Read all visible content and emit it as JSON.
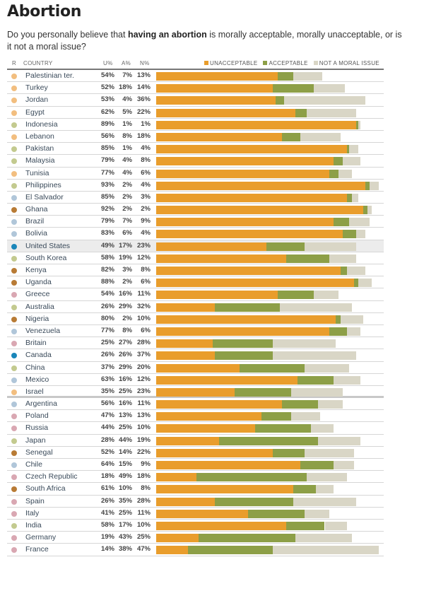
{
  "header": {
    "title": "Abortion",
    "question_pre": "Do you personally believe that ",
    "question_bold": "having an abortion",
    "question_post": " is morally acceptable, morally unacceptable, or is it not a moral issue?"
  },
  "columns": {
    "region": "R",
    "country": "COUNTRY",
    "u": "U%",
    "a": "A%",
    "n": "N%"
  },
  "legend": [
    {
      "label": "UNACCEPTABLE",
      "color": "#e99d2c"
    },
    {
      "label": "ACCEPTABLE",
      "color": "#8d9f47"
    },
    {
      "label": "NOT A MORAL ISSUE",
      "color": "#d9d6c6"
    }
  ],
  "region_colors": {
    "middle_east": "#f2be7f",
    "asia": "#c3ca8f",
    "latin_america": "#b0c6d9",
    "africa": "#b87b35",
    "north_america": "#1a86b9",
    "europe": "#d9a7b2"
  },
  "chart_data": {
    "type": "bar",
    "stacked": true,
    "orientation": "horizontal",
    "title": "Abortion",
    "subtitle": "Do you personally believe that having an abortion is morally acceptable, morally unacceptable, or is it not a moral issue?",
    "xlim": [
      0,
      100
    ],
    "legend_position": "top-right",
    "series_names": [
      "Unacceptable",
      "Acceptable",
      "Not a moral issue"
    ],
    "highlight": "United States",
    "section_break_after": "Israel",
    "rows": [
      {
        "country": "Palestinian ter.",
        "region": "middle_east",
        "u": 54,
        "a": 7,
        "n": 13
      },
      {
        "country": "Turkey",
        "region": "middle_east",
        "u": 52,
        "a": 18,
        "n": 14
      },
      {
        "country": "Jordan",
        "region": "middle_east",
        "u": 53,
        "a": 4,
        "n": 36
      },
      {
        "country": "Egypt",
        "region": "middle_east",
        "u": 62,
        "a": 5,
        "n": 22
      },
      {
        "country": "Indonesia",
        "region": "asia",
        "u": 89,
        "a": 1,
        "n": 1
      },
      {
        "country": "Lebanon",
        "region": "middle_east",
        "u": 56,
        "a": 8,
        "n": 18
      },
      {
        "country": "Pakistan",
        "region": "asia",
        "u": 85,
        "a": 1,
        "n": 4
      },
      {
        "country": "Malaysia",
        "region": "asia",
        "u": 79,
        "a": 4,
        "n": 8
      },
      {
        "country": "Tunisia",
        "region": "middle_east",
        "u": 77,
        "a": 4,
        "n": 6
      },
      {
        "country": "Philippines",
        "region": "asia",
        "u": 93,
        "a": 2,
        "n": 4
      },
      {
        "country": "El Salvador",
        "region": "latin_america",
        "u": 85,
        "a": 2,
        "n": 3
      },
      {
        "country": "Ghana",
        "region": "africa",
        "u": 92,
        "a": 2,
        "n": 2
      },
      {
        "country": "Brazil",
        "region": "latin_america",
        "u": 79,
        "a": 7,
        "n": 9
      },
      {
        "country": "Bolivia",
        "region": "latin_america",
        "u": 83,
        "a": 6,
        "n": 4
      },
      {
        "country": "United States",
        "region": "north_america",
        "u": 49,
        "a": 17,
        "n": 23
      },
      {
        "country": "South Korea",
        "region": "asia",
        "u": 58,
        "a": 19,
        "n": 12
      },
      {
        "country": "Kenya",
        "region": "africa",
        "u": 82,
        "a": 3,
        "n": 8
      },
      {
        "country": "Uganda",
        "region": "africa",
        "u": 88,
        "a": 2,
        "n": 6
      },
      {
        "country": "Greece",
        "region": "europe",
        "u": 54,
        "a": 16,
        "n": 11
      },
      {
        "country": "Australia",
        "region": "asia",
        "u": 26,
        "a": 29,
        "n": 32
      },
      {
        "country": "Nigeria",
        "region": "africa",
        "u": 80,
        "a": 2,
        "n": 10
      },
      {
        "country": "Venezuela",
        "region": "latin_america",
        "u": 77,
        "a": 8,
        "n": 6
      },
      {
        "country": "Britain",
        "region": "europe",
        "u": 25,
        "a": 27,
        "n": 28
      },
      {
        "country": "Canada",
        "region": "north_america",
        "u": 26,
        "a": 26,
        "n": 37
      },
      {
        "country": "China",
        "region": "asia",
        "u": 37,
        "a": 29,
        "n": 20
      },
      {
        "country": "Mexico",
        "region": "latin_america",
        "u": 63,
        "a": 16,
        "n": 12
      },
      {
        "country": "Israel",
        "region": "middle_east",
        "u": 35,
        "a": 25,
        "n": 23
      },
      {
        "country": "Argentina",
        "region": "latin_america",
        "u": 56,
        "a": 16,
        "n": 11
      },
      {
        "country": "Poland",
        "region": "europe",
        "u": 47,
        "a": 13,
        "n": 13
      },
      {
        "country": "Russia",
        "region": "europe",
        "u": 44,
        "a": 25,
        "n": 10
      },
      {
        "country": "Japan",
        "region": "asia",
        "u": 28,
        "a": 44,
        "n": 19
      },
      {
        "country": "Senegal",
        "region": "africa",
        "u": 52,
        "a": 14,
        "n": 22
      },
      {
        "country": "Chile",
        "region": "latin_america",
        "u": 64,
        "a": 15,
        "n": 9
      },
      {
        "country": "Czech Republic",
        "region": "europe",
        "u": 18,
        "a": 49,
        "n": 18
      },
      {
        "country": "South Africa",
        "region": "africa",
        "u": 61,
        "a": 10,
        "n": 8
      },
      {
        "country": "Spain",
        "region": "europe",
        "u": 26,
        "a": 35,
        "n": 28
      },
      {
        "country": "Italy",
        "region": "europe",
        "u": 41,
        "a": 25,
        "n": 11
      },
      {
        "country": "India",
        "region": "asia",
        "u": 58,
        "a": 17,
        "n": 10
      },
      {
        "country": "Germany",
        "region": "europe",
        "u": 19,
        "a": 43,
        "n": 25
      },
      {
        "country": "France",
        "region": "europe",
        "u": 14,
        "a": 38,
        "n": 47
      }
    ]
  }
}
